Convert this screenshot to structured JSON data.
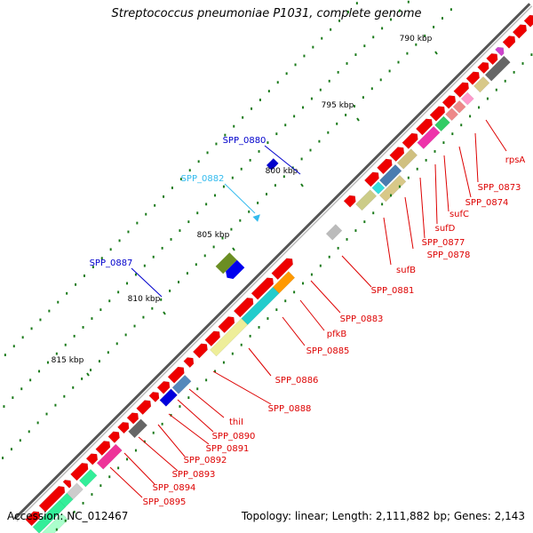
{
  "title": "Streptococcus pneumoniae P1031, complete genome",
  "footer": {
    "accession": "Accession: NC_012467",
    "summary": "Topology: linear; Length: 2,111,882 bp; Genes: 2,143"
  },
  "scale_labels": [
    "790 kbp",
    "795 kbp",
    "800 kbp",
    "805 kbp",
    "810 kbp",
    "815 kbp"
  ],
  "colors": {
    "backbone": "#808080",
    "tick": "#1a7a1a",
    "gene_red": "#ee0000",
    "label_red": "#dd0000",
    "label_blue": "#0000cc",
    "label_cyan": "#33bbee"
  },
  "outer_labels": [
    {
      "text": "SPP_0880",
      "color": "blue"
    },
    {
      "text": "SPP_0882",
      "color": "cyan"
    },
    {
      "text": "SPP_0887",
      "color": "blue"
    }
  ],
  "inner_labels": [
    "rpsA",
    "SPP_0873",
    "SPP_0874",
    "sufC",
    "sufD",
    "SPP_0877",
    "SPP_0878",
    "sufB",
    "SPP_0881",
    "SPP_0883",
    "pfkB",
    "SPP_0885",
    "SPP_0886",
    "SPP_0888",
    "thiI",
    "SPP_0890",
    "SPP_0891",
    "SPP_0892",
    "SPP_0893",
    "SPP_0894",
    "SPP_0895"
  ]
}
